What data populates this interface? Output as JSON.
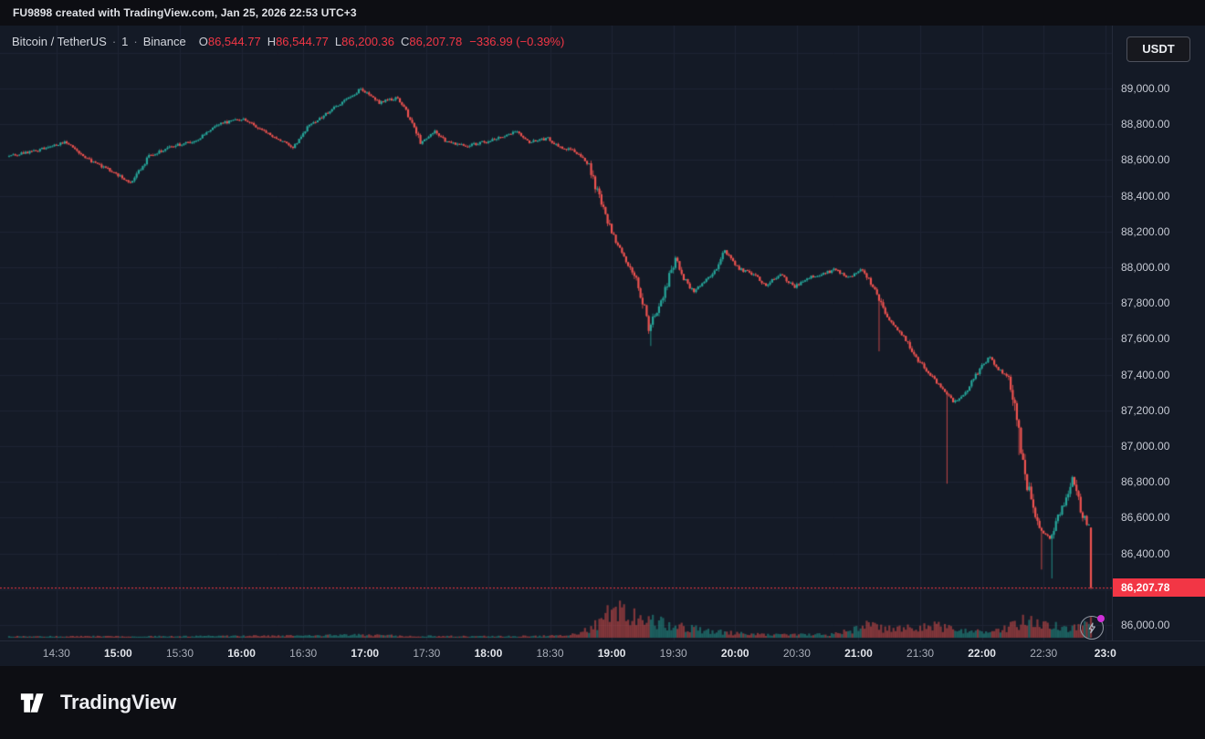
{
  "attribution": "FU9898 created with TradingView.com, Jan 25, 2026 22:53 UTC+3",
  "legend": {
    "symbol": "Bitcoin / TetherUS",
    "sep": "·",
    "interval": "1",
    "exchange": "Binance",
    "ohlc": [
      {
        "label": "O",
        "value": "86,544.77"
      },
      {
        "label": "H",
        "value": "86,544.77"
      },
      {
        "label": "L",
        "value": "86,200.36"
      },
      {
        "label": "C",
        "value": "86,207.78"
      }
    ],
    "change": "−336.99 (−0.39%)"
  },
  "currency_button": "USDT",
  "last_price": {
    "text": "86,207.78",
    "value": 86207.78
  },
  "price_axis": {
    "labels": [
      {
        "text": "89,000.00",
        "value": 89000
      },
      {
        "text": "88,800.00",
        "value": 88800
      },
      {
        "text": "88,600.00",
        "value": 88600
      },
      {
        "text": "88,400.00",
        "value": 88400
      },
      {
        "text": "88,200.00",
        "value": 88200
      },
      {
        "text": "88,000.00",
        "value": 88000
      },
      {
        "text": "87,800.00",
        "value": 87800
      },
      {
        "text": "87,600.00",
        "value": 87600
      },
      {
        "text": "87,400.00",
        "value": 87400
      },
      {
        "text": "87,200.00",
        "value": 87200
      },
      {
        "text": "87,000.00",
        "value": 87000
      },
      {
        "text": "86,800.00",
        "value": 86800
      },
      {
        "text": "86,600.00",
        "value": 86600
      },
      {
        "text": "86,400.00",
        "value": 86400
      },
      {
        "text": "86,000.00",
        "value": 86000
      }
    ]
  },
  "time_axis": {
    "ticks": [
      {
        "text": "14:30",
        "minute": 23,
        "bold": false
      },
      {
        "text": "15:00",
        "minute": 53,
        "bold": true
      },
      {
        "text": "15:30",
        "minute": 83,
        "bold": false
      },
      {
        "text": "16:00",
        "minute": 113,
        "bold": true
      },
      {
        "text": "16:30",
        "minute": 143,
        "bold": false
      },
      {
        "text": "17:00",
        "minute": 173,
        "bold": true
      },
      {
        "text": "17:30",
        "minute": 203,
        "bold": false
      },
      {
        "text": "18:00",
        "minute": 233,
        "bold": true
      },
      {
        "text": "18:30",
        "minute": 263,
        "bold": false
      },
      {
        "text": "19:00",
        "minute": 293,
        "bold": true
      },
      {
        "text": "19:30",
        "minute": 323,
        "bold": false
      },
      {
        "text": "20:00",
        "minute": 353,
        "bold": true
      },
      {
        "text": "20:30",
        "minute": 383,
        "bold": false
      },
      {
        "text": "21:00",
        "minute": 413,
        "bold": true
      },
      {
        "text": "21:30",
        "minute": 443,
        "bold": false
      },
      {
        "text": "22:00",
        "minute": 473,
        "bold": true
      },
      {
        "text": "22:30",
        "minute": 503,
        "bold": false
      },
      {
        "text": "23:0",
        "minute": 533,
        "bold": true
      }
    ]
  },
  "footer": {
    "brand": "TradingView"
  },
  "colors": {
    "background": "#0d0e13",
    "pane": "#141a26",
    "grid": "#1e2434",
    "up": "#26a69a",
    "down": "#ef5350",
    "volume_up": "rgba(38,166,154,0.5)",
    "volume_down": "rgba(239,83,80,0.5)",
    "last_price": "#f23645",
    "axis_text": "#c6cad4",
    "dot": "#cf2fd8"
  },
  "chart_data": {
    "type": "candlestick",
    "title": "Bitcoin / TetherUS · 1 · Binance",
    "symbol": "BTC/USDT",
    "exchange": "Binance",
    "interval_minutes": 1,
    "session_start": "14:07",
    "session_end": "22:53",
    "ylim": [
      85920,
      89340
    ],
    "y_tick_step": 200,
    "grid": true,
    "ohlc_last": {
      "open": 86544.77,
      "high": 86544.77,
      "low": 86200.36,
      "close": 86207.78,
      "change": -336.99,
      "change_pct": -0.39
    },
    "price_anchors": [
      [
        0,
        88620
      ],
      [
        13,
        88650
      ],
      [
        29,
        88700
      ],
      [
        38,
        88610
      ],
      [
        49,
        88550
      ],
      [
        60,
        88470
      ],
      [
        69,
        88620
      ],
      [
        80,
        88680
      ],
      [
        91,
        88700
      ],
      [
        102,
        88800
      ],
      [
        115,
        88830
      ],
      [
        123,
        88770
      ],
      [
        131,
        88720
      ],
      [
        139,
        88670
      ],
      [
        146,
        88780
      ],
      [
        155,
        88860
      ],
      [
        168,
        88960
      ],
      [
        172,
        89000
      ],
      [
        181,
        88920
      ],
      [
        190,
        88950
      ],
      [
        196,
        88830
      ],
      [
        201,
        88700
      ],
      [
        208,
        88760
      ],
      [
        214,
        88700
      ],
      [
        223,
        88680
      ],
      [
        232,
        88700
      ],
      [
        241,
        88730
      ],
      [
        247,
        88760
      ],
      [
        254,
        88700
      ],
      [
        263,
        88720
      ],
      [
        269,
        88670
      ],
      [
        276,
        88650
      ],
      [
        283,
        88570
      ],
      [
        287,
        88420
      ],
      [
        292,
        88260
      ],
      [
        296,
        88140
      ],
      [
        301,
        88040
      ],
      [
        305,
        87960
      ],
      [
        309,
        87810
      ],
      [
        312,
        87660,
        87560
      ],
      [
        316,
        87760
      ],
      [
        320,
        87870
      ],
      [
        325,
        88060
      ],
      [
        329,
        87940
      ],
      [
        334,
        87860
      ],
      [
        338,
        87910
      ],
      [
        343,
        87960
      ],
      [
        349,
        88090
      ],
      [
        356,
        87990
      ],
      [
        363,
        87960
      ],
      [
        369,
        87900
      ],
      [
        376,
        87960
      ],
      [
        383,
        87890
      ],
      [
        389,
        87940
      ],
      [
        396,
        87960
      ],
      [
        403,
        87990
      ],
      [
        409,
        87940
      ],
      [
        416,
        87990
      ],
      [
        423,
        87850,
        87530
      ],
      [
        429,
        87700
      ],
      [
        436,
        87610
      ],
      [
        443,
        87480
      ],
      [
        449,
        87400
      ],
      [
        456,
        87300,
        86790
      ],
      [
        460,
        87250
      ],
      [
        465,
        87280
      ],
      [
        469,
        87360
      ],
      [
        474,
        87450
      ],
      [
        478,
        87500
      ],
      [
        482,
        87430
      ],
      [
        487,
        87380
      ],
      [
        491,
        87150,
        86950
      ],
      [
        495,
        86850
      ],
      [
        498,
        86680
      ],
      [
        502,
        86540,
        86310
      ],
      [
        507,
        86480,
        86260
      ],
      [
        511,
        86600
      ],
      [
        516,
        86730
      ],
      [
        518,
        86820
      ],
      [
        522,
        86650
      ],
      [
        525,
        86560
      ]
    ],
    "volume_anchors": [
      [
        0,
        0.05
      ],
      [
        80,
        0.05
      ],
      [
        140,
        0.07
      ],
      [
        173,
        0.1
      ],
      [
        200,
        0.06
      ],
      [
        240,
        0.05
      ],
      [
        270,
        0.07
      ],
      [
        283,
        0.3
      ],
      [
        288,
        0.6
      ],
      [
        293,
        0.9
      ],
      [
        298,
        1.0
      ],
      [
        304,
        0.7
      ],
      [
        310,
        0.6
      ],
      [
        318,
        0.5
      ],
      [
        325,
        0.4
      ],
      [
        335,
        0.3
      ],
      [
        345,
        0.2
      ],
      [
        360,
        0.12
      ],
      [
        380,
        0.1
      ],
      [
        400,
        0.12
      ],
      [
        410,
        0.25
      ],
      [
        417,
        0.45
      ],
      [
        425,
        0.3
      ],
      [
        435,
        0.3
      ],
      [
        450,
        0.45
      ],
      [
        460,
        0.25
      ],
      [
        470,
        0.2
      ],
      [
        480,
        0.25
      ],
      [
        490,
        0.5
      ],
      [
        495,
        0.65
      ],
      [
        500,
        0.5
      ],
      [
        507,
        0.45
      ],
      [
        512,
        0.4
      ],
      [
        518,
        0.35
      ],
      [
        523,
        0.45
      ],
      [
        526,
        0.55
      ]
    ]
  }
}
